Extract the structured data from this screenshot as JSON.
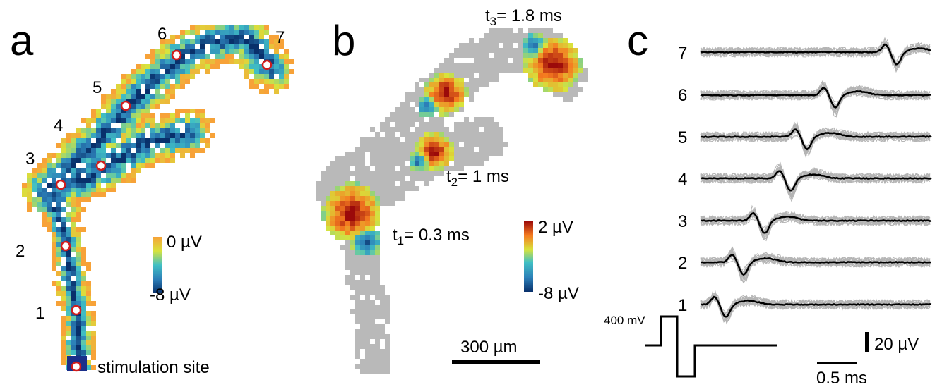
{
  "panels": {
    "a": {
      "label": "a",
      "site_labels": [
        "1",
        "2",
        "3",
        "4",
        "5",
        "6",
        "7"
      ],
      "stim_label": "stimulation site",
      "colorbar": {
        "top": "0 µV",
        "bottom": "-8 µV"
      }
    },
    "b": {
      "label": "b",
      "times": [
        {
          "sym": "t",
          "sub": "1",
          "val": "= 0.3 ms"
        },
        {
          "sym": "t",
          "sub": "2",
          "val": "= 1 ms"
        },
        {
          "sym": "t",
          "sub": "3",
          "val": "= 1.8 ms"
        }
      ],
      "colorbar": {
        "top": "2 µV",
        "bottom": "-8 µV"
      },
      "scalebar": "300 µm"
    },
    "c": {
      "label": "c",
      "trace_labels": [
        "7",
        "6",
        "5",
        "4",
        "3",
        "2",
        "1"
      ],
      "stim_amplitude": "400 mV",
      "scale_v": "20 µV",
      "scale_t": "0.5 ms"
    }
  },
  "colors": {
    "trace_gray": "#b4b4b4",
    "mask_gray": "#b9b9b9",
    "site_ring": "#d01c1c"
  }
}
